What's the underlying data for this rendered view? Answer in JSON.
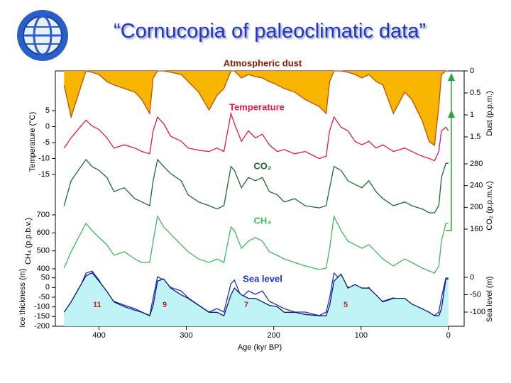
{
  "title": "“Cornucopia of paleoclimatic data”",
  "chart_data": [
    {
      "type": "area",
      "title": "Atmospheric dust",
      "ylabel": "Dust (p.p.m.)",
      "axis_side": "right",
      "y_inverted": true,
      "color": "#c0500a",
      "fill": "#f7b500",
      "xlim": [
        450,
        -18
      ],
      "ylim": [
        0,
        2
      ],
      "yticks": [
        0,
        0.5,
        1,
        1.5
      ],
      "x": [
        440,
        432,
        415,
        408,
        400,
        391,
        383,
        371,
        359,
        351,
        342,
        338,
        333,
        326,
        318,
        306,
        298,
        286,
        274,
        265,
        257,
        249,
        245,
        237,
        229,
        221,
        213,
        205,
        196,
        188,
        176,
        164,
        148,
        140,
        136,
        131,
        123,
        115,
        107,
        99,
        91,
        83,
        75,
        63,
        50,
        42,
        30,
        22,
        16,
        11,
        8,
        3,
        0
      ],
      "values": [
        0.32,
        1.05,
        0,
        0.03,
        0.08,
        0.24,
        0.32,
        0.4,
        0.48,
        0.65,
        0.97,
        0.16,
        0,
        0,
        0.03,
        0.08,
        0.24,
        0.48,
        0.89,
        0.56,
        0.4,
        0,
        0,
        0.16,
        0.08,
        0.13,
        0.16,
        0.24,
        0.32,
        0.4,
        0.48,
        0.65,
        0.81,
        0.97,
        0.24,
        0,
        0,
        0.03,
        0.08,
        0.16,
        0.08,
        0.24,
        0.32,
        0.97,
        0.48,
        0.65,
        1.13,
        1.61,
        1.69,
        0.81,
        0.08,
        0,
        0
      ]
    },
    {
      "type": "line",
      "title": "Temperature",
      "ylabel": "Temperature (°C)",
      "axis_side": "left",
      "color": "#e8174e",
      "xlim": [
        450,
        -18
      ],
      "ylim": [
        -15,
        5
      ],
      "yticks": [
        5,
        0,
        -5,
        -10,
        -15
      ],
      "x": [
        440,
        432,
        415,
        408,
        400,
        391,
        383,
        371,
        359,
        351,
        342,
        338,
        333,
        326,
        318,
        306,
        298,
        286,
        274,
        265,
        257,
        249,
        245,
        237,
        229,
        221,
        213,
        205,
        196,
        188,
        176,
        164,
        148,
        140,
        136,
        131,
        123,
        115,
        107,
        99,
        91,
        83,
        75,
        63,
        50,
        42,
        30,
        22,
        16,
        11,
        8,
        3,
        0
      ],
      "values": [
        -6.7,
        -3.5,
        2,
        0.2,
        -0.9,
        -3.5,
        -6.7,
        -5.7,
        -6.7,
        -7.8,
        -8.5,
        -1.3,
        3,
        0.9,
        -3,
        -4.6,
        -6.7,
        -7.4,
        -7.8,
        -6.7,
        -7.8,
        4.1,
        0.9,
        -4.6,
        -1.3,
        -3.5,
        -2.4,
        -5.7,
        -7.8,
        -7.2,
        -8.5,
        -7.8,
        -10,
        -9.3,
        -1.3,
        3,
        -0.2,
        -1.3,
        -4.6,
        -5.7,
        -4.6,
        -6.7,
        -5.7,
        -7.8,
        -6.7,
        -7.8,
        -9.3,
        -10,
        -10.7,
        -7.8,
        -1.3,
        -0.2,
        -1.3
      ]
    },
    {
      "type": "line",
      "title": "CO₂",
      "ylabel": "CO₂ (p.p.m.v.)",
      "axis_side": "right",
      "color": "#1a6b2e",
      "xlim": [
        450,
        -18
      ],
      "ylim": [
        160,
        280
      ],
      "yticks": [
        280,
        240,
        200,
        160
      ],
      "x": [
        440,
        432,
        415,
        408,
        400,
        391,
        383,
        371,
        359,
        351,
        342,
        338,
        333,
        326,
        318,
        306,
        298,
        286,
        274,
        265,
        257,
        249,
        245,
        237,
        229,
        221,
        213,
        205,
        196,
        188,
        176,
        164,
        148,
        140,
        136,
        131,
        123,
        115,
        107,
        99,
        91,
        83,
        75,
        63,
        50,
        42,
        30,
        22,
        16,
        11,
        8,
        3,
        0
      ],
      "values": [
        203,
        249,
        288,
        275,
        268,
        255,
        229,
        236,
        216,
        210,
        203,
        249,
        288,
        275,
        262,
        249,
        223,
        210,
        203,
        197,
        203,
        275,
        268,
        236,
        255,
        249,
        255,
        229,
        223,
        210,
        216,
        203,
        199,
        203,
        236,
        275,
        268,
        249,
        242,
        236,
        249,
        229,
        216,
        203,
        210,
        203,
        197,
        190,
        190,
        203,
        255,
        281,
        281
      ]
    },
    {
      "type": "line",
      "title": "CH₄",
      "ylabel": "CH₄ (p.p.b.v.)",
      "axis_side": "left",
      "color": "#3dbb5a",
      "xlim": [
        450,
        -18
      ],
      "ylim": [
        400,
        700
      ],
      "yticks": [
        700,
        600,
        500,
        400
      ],
      "x": [
        440,
        432,
        415,
        408,
        400,
        391,
        383,
        371,
        359,
        351,
        342,
        338,
        333,
        326,
        318,
        306,
        298,
        286,
        274,
        265,
        257,
        249,
        245,
        237,
        229,
        221,
        213,
        205,
        196,
        188,
        176,
        164,
        148,
        140,
        136,
        131,
        123,
        115,
        107,
        99,
        91,
        83,
        75,
        63,
        50,
        42,
        30,
        22,
        16,
        11,
        8,
        3,
        0
      ],
      "values": [
        404,
        495,
        653,
        613,
        574,
        534,
        475,
        495,
        455,
        435,
        435,
        554,
        692,
        633,
        593,
        534,
        495,
        455,
        435,
        455,
        435,
        633,
        613,
        514,
        554,
        574,
        554,
        495,
        475,
        455,
        435,
        416,
        396,
        404,
        514,
        692,
        613,
        554,
        534,
        514,
        534,
        495,
        455,
        416,
        455,
        435,
        404,
        388,
        376,
        416,
        554,
        653,
        653
      ]
    },
    {
      "type": "line",
      "title": "Sea level",
      "ylabel": "Sea level (m)",
      "axis_side": "right",
      "color": "#1a2fd6",
      "xlim": [
        450,
        -18
      ],
      "ylim": [
        -100,
        0
      ],
      "yticks": [
        0,
        -50,
        -100
      ],
      "x": [
        440,
        432,
        415,
        408,
        400,
        391,
        383,
        371,
        359,
        351,
        342,
        338,
        333,
        326,
        318,
        306,
        298,
        286,
        274,
        265,
        257,
        249,
        245,
        237,
        229,
        221,
        213,
        205,
        196,
        188,
        176,
        164,
        148,
        140,
        136,
        131,
        123,
        115,
        107,
        99,
        91,
        83,
        75,
        63,
        50,
        42,
        30,
        22,
        16,
        11,
        8,
        3,
        0
      ],
      "values": [
        null,
        -90,
        12,
        18,
        -8,
        -49,
        -69,
        -80,
        -90,
        -100,
        -110,
        -59,
        2,
        -8,
        -29,
        -39,
        -59,
        -80,
        -100,
        -90,
        -100,
        -18,
        -8,
        -59,
        -39,
        -49,
        -39,
        -69,
        -80,
        -90,
        -100,
        -100,
        -110,
        -100,
        -59,
        12,
        -8,
        -29,
        -29,
        -39,
        -29,
        -59,
        -69,
        -59,
        -69,
        -80,
        -90,
        -110,
        -110,
        -100,
        -59,
        -2,
        -2
      ]
    },
    {
      "type": "area",
      "title": "Ice sheet thickness",
      "ylabel": "Ice thickness (m)",
      "axis_side": "left",
      "color": "#0a1a6e",
      "fill": "#bff3f6",
      "xlabel": "Age (kyr BP)",
      "xlim": [
        450,
        -18
      ],
      "xticks": [
        400,
        300,
        200,
        100,
        0
      ],
      "ylim": [
        -200,
        100
      ],
      "yticks": [
        50,
        0,
        -50,
        -100,
        -150,
        -200
      ],
      "annotations": [
        "11",
        "9",
        "7",
        "5"
      ],
      "x": [
        440,
        432,
        415,
        408,
        400,
        391,
        383,
        371,
        359,
        351,
        342,
        338,
        333,
        326,
        318,
        306,
        298,
        286,
        274,
        265,
        257,
        249,
        245,
        237,
        229,
        221,
        213,
        205,
        196,
        188,
        176,
        164,
        148,
        140,
        136,
        131,
        123,
        115,
        107,
        99,
        91,
        83,
        75,
        63,
        50,
        42,
        30,
        22,
        16,
        11,
        8,
        3,
        0
      ],
      "values": [
        -128,
        -74,
        60,
        76,
        33,
        -20,
        -74,
        -99,
        -117,
        -128,
        -146,
        -92,
        33,
        44,
        -3,
        -38,
        -56,
        -92,
        -128,
        -128,
        -146,
        -38,
        -3,
        -38,
        -56,
        -56,
        -74,
        -92,
        -99,
        -128,
        -128,
        -139,
        -146,
        -146,
        -92,
        33,
        69,
        -3,
        15,
        -3,
        -3,
        -38,
        -74,
        -56,
        -56,
        -85,
        -110,
        -128,
        -146,
        -146,
        -110,
        44,
        44
      ]
    }
  ]
}
